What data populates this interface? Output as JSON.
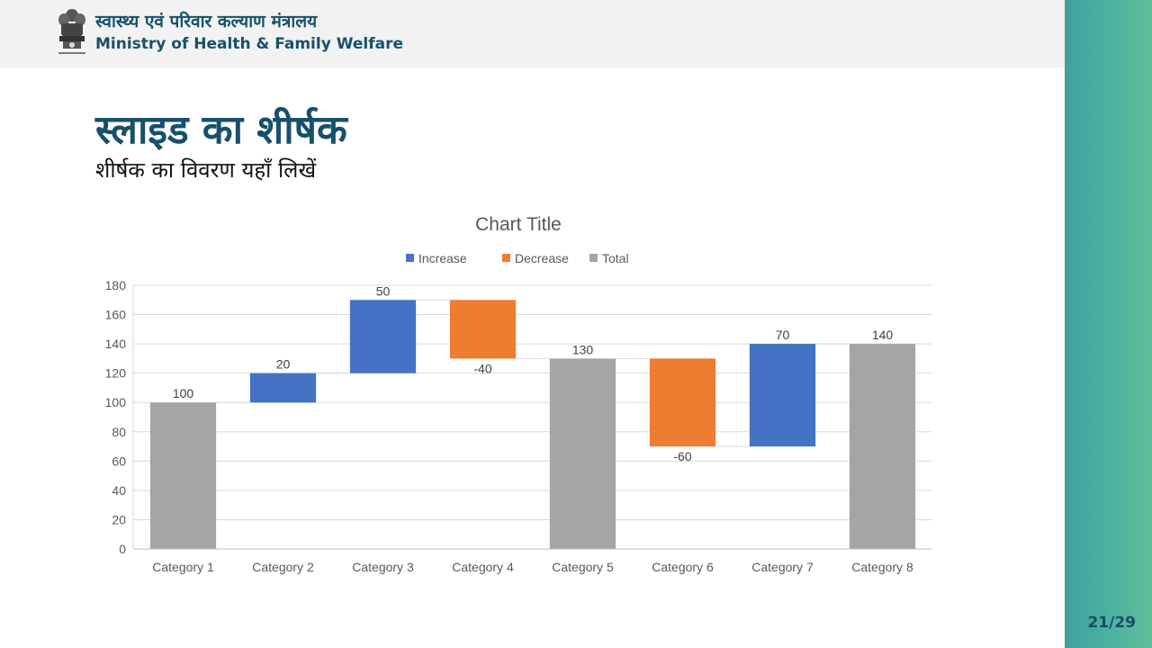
{
  "header": {
    "ministry_hi": "स्वास्थ्य एवं परिवार कल्याण मंत्रालय",
    "ministry_en": "Ministry of Health & Family Welfare",
    "emblem_icon": "state-emblem-icon"
  },
  "slide": {
    "title": "स्लाइड का शीर्षक",
    "subtitle": "शीर्षक का विवरण यहाँ लिखें",
    "page": "21/29"
  },
  "colors": {
    "accent": "#17506a",
    "increase": "#4472c4",
    "decrease": "#ed7d31",
    "total": "#a5a5a5"
  },
  "chart_data": {
    "type": "waterfall",
    "title": "Chart Title",
    "legend": [
      "Increase",
      "Decrease",
      "Total"
    ],
    "legend_position": "top",
    "categories": [
      "Category 1",
      "Category 2",
      "Category 3",
      "Category 4",
      "Category 5",
      "Category 6",
      "Category 7",
      "Category 8"
    ],
    "values": [
      100,
      20,
      50,
      -40,
      130,
      -60,
      70,
      140
    ],
    "kinds": [
      "total",
      "increase",
      "increase",
      "decrease",
      "total",
      "decrease",
      "increase",
      "total"
    ],
    "labels": [
      "100",
      "20",
      "50",
      "-40",
      "130",
      "-60",
      "70",
      "140"
    ],
    "ylim": [
      0,
      180
    ],
    "yticks": [
      "0",
      "20",
      "40",
      "60",
      "80",
      "100",
      "120",
      "140",
      "160",
      "180"
    ],
    "grid": true
  }
}
